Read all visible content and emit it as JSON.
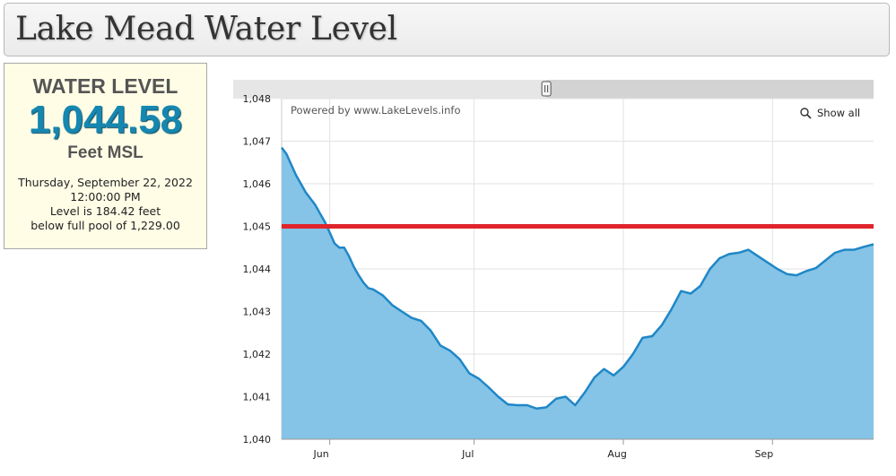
{
  "page": {
    "title": "Lake Mead Water Level"
  },
  "level_box": {
    "label": "WATER LEVEL",
    "value": "1,044.58",
    "unit": "Feet MSL",
    "date": "Thursday, September 22, 2022",
    "time": "12:00:00 PM",
    "below_line": "Level is 184.42 feet",
    "full_pool_line": "below full pool of 1,229.00"
  },
  "chart": {
    "credit": "Powered by www.LakeLevels.info",
    "show_all": "Show all",
    "navigator": {
      "from": "2022-05-08",
      "to": "2022-07-16"
    }
  },
  "colors": {
    "area_fill": "#85c4e6",
    "line": "#1f87c7",
    "threshold": "#e0242c",
    "level_value": "#1587b0"
  },
  "chart_data": {
    "type": "area",
    "title": "",
    "xlabel": "",
    "ylabel": "",
    "xlim": [
      "2022-05-22",
      "2022-09-22"
    ],
    "ylim": [
      1040,
      1048
    ],
    "yticks": [
      1040,
      1041,
      1042,
      1043,
      1044,
      1045,
      1046,
      1047,
      1048
    ],
    "ytick_labels": [
      "1,040",
      "1,041",
      "1,042",
      "1,043",
      "1,044",
      "1,045",
      "1,046",
      "1,047",
      "1,048"
    ],
    "xticks": [
      "2022-06-01",
      "2022-07-01",
      "2022-08-01",
      "2022-09-01"
    ],
    "xtick_labels": [
      "Jun",
      "Jul",
      "Aug",
      "Sep"
    ],
    "grid": true,
    "threshold": 1045,
    "series": [
      {
        "x": [
          "2022-05-22",
          "2022-05-23",
          "2022-05-24",
          "2022-05-25",
          "2022-05-26",
          "2022-05-27",
          "2022-05-28",
          "2022-05-29",
          "2022-05-30",
          "2022-05-31",
          "2022-06-01",
          "2022-06-02",
          "2022-06-03",
          "2022-06-04",
          "2022-06-05",
          "2022-06-06",
          "2022-06-07",
          "2022-06-08",
          "2022-06-09",
          "2022-06-10",
          "2022-06-12",
          "2022-06-14",
          "2022-06-16",
          "2022-06-18",
          "2022-06-20",
          "2022-06-22",
          "2022-06-24",
          "2022-06-26",
          "2022-06-28",
          "2022-06-30",
          "2022-07-02",
          "2022-07-04",
          "2022-07-06",
          "2022-07-08",
          "2022-07-10",
          "2022-07-12",
          "2022-07-14",
          "2022-07-16",
          "2022-07-18",
          "2022-07-20",
          "2022-07-22",
          "2022-07-24",
          "2022-07-26",
          "2022-07-28",
          "2022-07-30",
          "2022-08-01",
          "2022-08-03",
          "2022-08-05",
          "2022-08-07",
          "2022-08-09",
          "2022-08-11",
          "2022-08-13",
          "2022-08-15",
          "2022-08-17",
          "2022-08-19",
          "2022-08-21",
          "2022-08-23",
          "2022-08-25",
          "2022-08-27",
          "2022-08-29",
          "2022-08-31",
          "2022-09-02",
          "2022-09-04",
          "2022-09-06",
          "2022-09-08",
          "2022-09-10",
          "2022-09-12",
          "2022-09-14",
          "2022-09-16",
          "2022-09-18",
          "2022-09-20",
          "2022-09-22"
        ],
        "y": [
          1046.85,
          1046.7,
          1046.45,
          1046.2,
          1046.0,
          1045.8,
          1045.65,
          1045.5,
          1045.3,
          1045.1,
          1044.85,
          1044.6,
          1044.5,
          1044.5,
          1044.3,
          1044.05,
          1043.85,
          1043.68,
          1043.55,
          1043.52,
          1043.38,
          1043.15,
          1043.0,
          1042.85,
          1042.78,
          1042.55,
          1042.2,
          1042.08,
          1041.88,
          1041.55,
          1041.42,
          1041.22,
          1041.0,
          1040.82,
          1040.8,
          1040.8,
          1040.72,
          1040.75,
          1040.95,
          1041.0,
          1040.8,
          1041.1,
          1041.45,
          1041.65,
          1041.5,
          1041.7,
          1042.0,
          1042.38,
          1042.42,
          1042.68,
          1043.05,
          1043.48,
          1043.42,
          1043.6,
          1044.0,
          1044.25,
          1044.35,
          1044.38,
          1044.45,
          1044.3,
          1044.15,
          1044.0,
          1043.88,
          1043.85,
          1043.95,
          1044.02,
          1044.2,
          1044.38,
          1044.45,
          1044.45,
          1044.52,
          1044.58
        ]
      }
    ]
  }
}
